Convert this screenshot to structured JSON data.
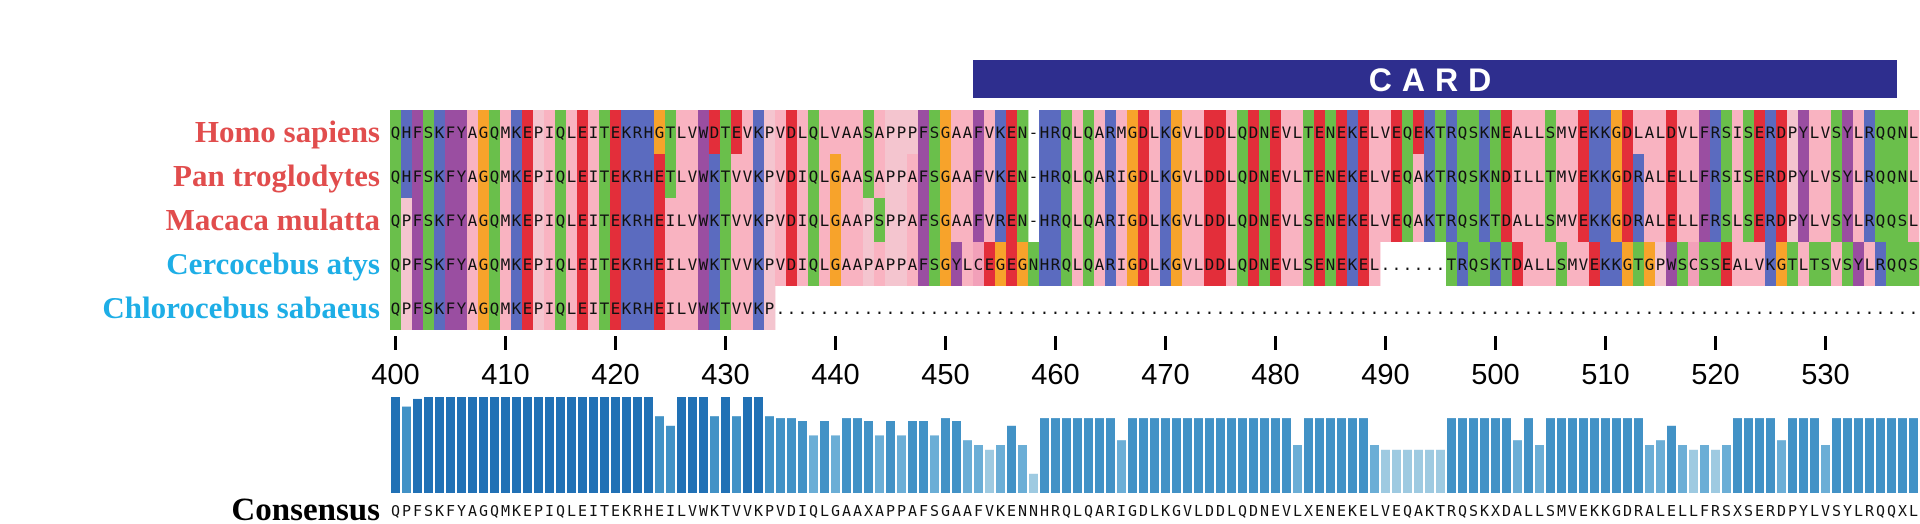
{
  "domain_label": {
    "name": "CARD",
    "start_position": 453,
    "end_position": 536,
    "color": "#2e2e8e"
  },
  "alignment": {
    "start_position": 400,
    "species": [
      {
        "name": "Homo sapiens",
        "color": "#e14d4d",
        "sequence": "QHFSKFYAGQMKEPIQLEITEKRHGTLVWDTEVKPVDLQLVAASAPPPFSGAAFVKEN-HRQLQARMGDLKGVLDDLQDNEVLTENEKELVEQEKTRQSKNEALLSMVEKKGDLALDVLFRSISERDPYLVSYLRQQNL"
      },
      {
        "name": "Pan troglodytes",
        "color": "#e14d4d",
        "sequence": "QHFSKFYAGQMKEPIQLEITEKRHETLVWKTVVKPVDIQLGAASAPPAFSGAAFVKEN-HRQLQARIGDLKGVLDDLQDNEVLTENEKELVEQAKTRQSKNDILLTMVEKKGDRALELLFRSISERDPYLVSYLRQQNL"
      },
      {
        "name": "Macaca mulatta",
        "color": "#e14d4d",
        "sequence": "QPFSKFYAGQMKEPIQLEITEKRHEILVWKTVVKPVDIQLGAAPSPPAFSGAAFVREN-HRQLQARIGDLKGVLDDLQDNEVLSENEKELVEQAKTRQSKTDALLSMVEKKGDRALELLFRSLSERDPYLVSYLRQQSL"
      },
      {
        "name": "Cercocebus atys",
        "color": "#1eaee6",
        "sequence": "QPFSKFYAGQMKEPIQLEITEKRHEILVWKTVVKPVDIQLGAAPAPPAFSGYLCEGEGNHRQLQARIGDLKGVLDDLQDNEVLSENEKEL......TRQSKTDALLSMVEKKGTGPWSCSSEALVKGTLTSVSYLRQQSL"
      },
      {
        "name": "Chlorocebus sabaeus",
        "color": "#1eaee6",
        "sequence": "QPFSKFYAGQMKEPIQLEITEKRHEILVWKTVVKP..................................................................................................................."
      }
    ]
  },
  "axis": {
    "ticks": [
      "400",
      "410",
      "420",
      "430",
      "440",
      "450",
      "460",
      "470",
      "480",
      "490",
      "500",
      "510",
      "520",
      "530"
    ]
  },
  "conservation": {
    "values": [
      1.0,
      0.9,
      0.98,
      1.0,
      1.0,
      1.0,
      1.0,
      1.0,
      1.0,
      1.0,
      1.0,
      1.0,
      1.0,
      1.0,
      1.0,
      1.0,
      1.0,
      1.0,
      1.0,
      1.0,
      1.0,
      1.0,
      1.0,
      1.0,
      0.8,
      0.7,
      1.0,
      1.0,
      1.0,
      0.8,
      1.0,
      0.8,
      1.0,
      1.0,
      0.8,
      0.78,
      0.78,
      0.75,
      0.6,
      0.75,
      0.6,
      0.78,
      0.78,
      0.75,
      0.6,
      0.75,
      0.6,
      0.75,
      0.75,
      0.6,
      0.78,
      0.75,
      0.55,
      0.5,
      0.45,
      0.5,
      0.7,
      0.5,
      0.2,
      0.78,
      0.78,
      0.78,
      0.78,
      0.78,
      0.78,
      0.78,
      0.55,
      0.78,
      0.78,
      0.78,
      0.78,
      0.78,
      0.78,
      0.78,
      0.78,
      0.78,
      0.78,
      0.78,
      0.78,
      0.78,
      0.78,
      0.78,
      0.5,
      0.78,
      0.78,
      0.78,
      0.78,
      0.78,
      0.78,
      0.5,
      0.45,
      0.45,
      0.45,
      0.45,
      0.45,
      0.45,
      0.78,
      0.78,
      0.78,
      0.78,
      0.78,
      0.78,
      0.55,
      0.78,
      0.5,
      0.78,
      0.78,
      0.78,
      0.78,
      0.78,
      0.78,
      0.78,
      0.78,
      0.78,
      0.5,
      0.55,
      0.7,
      0.5,
      0.45,
      0.5,
      0.45,
      0.5,
      0.78,
      0.78,
      0.78,
      0.78,
      0.55,
      0.78,
      0.78,
      0.78,
      0.5,
      0.78,
      0.78,
      0.78,
      0.78,
      0.78,
      0.78,
      0.78,
      0.78,
      0.78,
      0.55,
      0.78,
      0.78,
      0.5,
      0.78
    ]
  },
  "consensus": {
    "label": "Consensus",
    "sequence": "QPFSKFYAGQMKEPIQLEITEKRHEILVWKTVVKPVDIQLGAAXAPPAFSGAAFVKENNHRQLQARIGDLKGVLDDLQDNEVLXENEKELVEQAKTRQSKXDALLSMVEKKGDRALELLFRSXSERDPYLVSYLRQQXL"
  },
  "residue_colors": {
    "hydrophobic": "#f9b3c1",
    "polar_green": "#6abf4b",
    "positive_blue": "#5b6bbf",
    "negative_red": "#e32e3a",
    "aromatic_purple": "#9a4ea1",
    "glycine_orange": "#f7a32b",
    "cysteine_pink": "#f2a0b9",
    "conservation_dark": "#2171b5",
    "conservation_light": "#9ecae1"
  }
}
